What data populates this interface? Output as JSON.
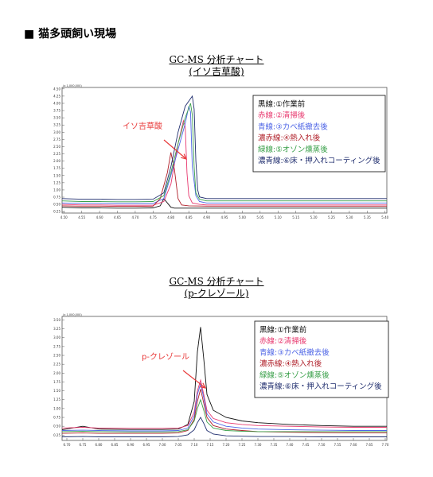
{
  "page": {
    "heading": "■ 猫多頭飼い現場"
  },
  "colors": {
    "black": "#111111",
    "red": "#e8396f",
    "blue": "#4d64e6",
    "dark_red": "#b0202a",
    "green": "#3aa04a",
    "dark_blue": "#1f2d6e",
    "arrow": "#e83a3a"
  },
  "chart_data": [
    {
      "type": "line",
      "title": "GC-MS 分析チャート",
      "subtitle": "(イソ吉草酸)",
      "corner_label": "(x 1,000,000)",
      "annotation": "イソ吉草酸",
      "x_ticks": [
        "4.50",
        "4.55",
        "4.60",
        "4.65",
        "4.70",
        "4.75",
        "4.80",
        "4.85",
        "4.90",
        "4.95",
        "5.00",
        "5.05",
        "5.10",
        "5.15",
        "5.20",
        "5.25",
        "5.30",
        "5.35",
        "5.40"
      ],
      "y_ticks": [
        "0.25",
        "0.50",
        "0.75",
        "1.00",
        "1.25",
        "1.50",
        "1.75",
        "2.00",
        "2.25",
        "2.50",
        "2.75",
        "3.00",
        "3.25",
        "3.50",
        "3.75",
        "4.00",
        "4.25",
        "4.50"
      ],
      "xlim": [
        4.495,
        5.405
      ],
      "ylim": [
        0.2,
        4.55
      ],
      "series": [
        {
          "name": "黒線:①作業前",
          "color": "#111111",
          "x": [
            4.495,
            4.55,
            4.6,
            4.65,
            4.7,
            4.75,
            4.77,
            4.78,
            4.79,
            4.8,
            4.81,
            4.83,
            4.85,
            4.9,
            4.95,
            5.0,
            5.05,
            5.1,
            5.2,
            5.3,
            5.405
          ],
          "y": [
            0.4,
            0.38,
            0.38,
            0.37,
            0.37,
            0.38,
            0.45,
            0.7,
            0.55,
            0.4,
            0.37,
            0.37,
            0.37,
            0.37,
            0.37,
            0.37,
            0.37,
            0.37,
            0.37,
            0.37,
            0.37
          ]
        },
        {
          "name": "赤線:②清掃後",
          "color": "#e8396f",
          "x": [
            4.495,
            4.55,
            4.6,
            4.65,
            4.7,
            4.75,
            4.78,
            4.8,
            4.82,
            4.835,
            4.84,
            4.845,
            4.85,
            4.86,
            4.88,
            4.9,
            4.95,
            5.0,
            5.1,
            5.2,
            5.3,
            5.405
          ],
          "y": [
            0.5,
            0.48,
            0.48,
            0.47,
            0.47,
            0.47,
            0.6,
            1.2,
            2.6,
            3.4,
            3.2,
            1.6,
            0.8,
            0.55,
            0.5,
            0.48,
            0.48,
            0.48,
            0.48,
            0.48,
            0.48,
            0.48
          ]
        },
        {
          "name": "青線:③カベ紙撤去後",
          "color": "#4d64e6",
          "x": [
            4.495,
            4.55,
            4.6,
            4.65,
            4.7,
            4.75,
            4.78,
            4.8,
            4.82,
            4.84,
            4.85,
            4.855,
            4.86,
            4.87,
            4.88,
            4.9,
            4.95,
            5.0,
            5.1,
            5.2,
            5.3,
            5.405
          ],
          "y": [
            0.55,
            0.54,
            0.54,
            0.53,
            0.53,
            0.53,
            0.7,
            1.5,
            2.4,
            3.3,
            3.9,
            3.7,
            1.8,
            0.8,
            0.6,
            0.55,
            0.55,
            0.55,
            0.55,
            0.55,
            0.55,
            0.55
          ]
        },
        {
          "name": "濃赤線:④熱入れ後",
          "color": "#b0202a",
          "x": [
            4.495,
            4.55,
            4.6,
            4.65,
            4.7,
            4.75,
            4.77,
            4.79,
            4.8,
            4.81,
            4.82,
            4.83,
            4.85,
            4.9,
            4.95,
            5.0,
            5.1,
            5.2,
            5.3,
            5.405
          ],
          "y": [
            0.45,
            0.44,
            0.44,
            0.43,
            0.43,
            0.44,
            0.7,
            1.6,
            2.3,
            1.7,
            0.7,
            0.48,
            0.45,
            0.44,
            0.44,
            0.44,
            0.44,
            0.44,
            0.44,
            0.44
          ]
        },
        {
          "name": "緑線:⑤オゾン燻蒸後",
          "color": "#3aa04a",
          "x": [
            4.495,
            4.55,
            4.6,
            4.65,
            4.7,
            4.75,
            4.78,
            4.8,
            4.82,
            4.84,
            4.855,
            4.86,
            4.865,
            4.87,
            4.88,
            4.9,
            4.95,
            5.0,
            5.1,
            5.2,
            5.3,
            5.405
          ],
          "y": [
            0.62,
            0.6,
            0.6,
            0.59,
            0.59,
            0.6,
            0.8,
            1.6,
            2.6,
            3.5,
            4.0,
            3.6,
            1.8,
            0.9,
            0.68,
            0.62,
            0.62,
            0.62,
            0.62,
            0.62,
            0.62,
            0.62
          ]
        },
        {
          "name": "濃青線:⑥床・押入れコーティング後",
          "color": "#1f2d6e",
          "x": [
            4.495,
            4.55,
            4.6,
            4.65,
            4.7,
            4.75,
            4.78,
            4.8,
            4.82,
            4.84,
            4.86,
            4.865,
            4.87,
            4.875,
            4.88,
            4.9,
            4.95,
            5.0,
            5.1,
            5.2,
            5.3,
            5.405
          ],
          "y": [
            0.7,
            0.68,
            0.68,
            0.67,
            0.67,
            0.68,
            0.9,
            1.8,
            3.0,
            3.9,
            4.25,
            3.8,
            2.0,
            1.0,
            0.76,
            0.7,
            0.7,
            0.7,
            0.7,
            0.7,
            0.7,
            0.7
          ]
        }
      ],
      "grid": false,
      "legend_position": "top-right"
    },
    {
      "type": "line",
      "title": "GC-MS 分析チャート",
      "subtitle": "(p-クレゾール)",
      "corner_label": "(x 1,000,000)",
      "annotation": "p-クレゾール",
      "x_ticks": [
        "6.70",
        "6.75",
        "6.80",
        "6.85",
        "6.90",
        "6.95",
        "7.00",
        "7.05",
        "7.10",
        "7.15",
        "7.20",
        "7.25",
        "7.30",
        "7.35",
        "7.40",
        "7.45",
        "7.50",
        "7.55",
        "7.60",
        "7.65",
        "7.70"
      ],
      "y_ticks": [
        "0.25",
        "0.50",
        "0.75",
        "1.00",
        "1.25",
        "1.50",
        "1.75",
        "2.00",
        "2.25",
        "2.50",
        "2.75",
        "3.00",
        "3.25",
        "3.50"
      ],
      "xlim": [
        6.685,
        7.705
      ],
      "ylim": [
        0.1,
        3.6
      ],
      "series": [
        {
          "name": "黒線:①作業前",
          "color": "#111111",
          "x": [
            6.685,
            6.75,
            6.8,
            6.9,
            7.0,
            7.05,
            7.08,
            7.1,
            7.11,
            7.12,
            7.13,
            7.14,
            7.16,
            7.2,
            7.25,
            7.3,
            7.4,
            7.5,
            7.6,
            7.705
          ],
          "y": [
            0.4,
            0.5,
            0.42,
            0.41,
            0.41,
            0.42,
            0.55,
            1.2,
            2.6,
            3.3,
            2.4,
            1.4,
            0.95,
            0.75,
            0.65,
            0.6,
            0.55,
            0.52,
            0.5,
            0.5
          ]
        },
        {
          "name": "赤線:②清掃後",
          "color": "#e8396f",
          "x": [
            6.685,
            6.75,
            6.8,
            6.9,
            7.0,
            7.05,
            7.08,
            7.1,
            7.11,
            7.12,
            7.13,
            7.14,
            7.16,
            7.2,
            7.25,
            7.3,
            7.4,
            7.5,
            7.6,
            7.705
          ],
          "y": [
            0.45,
            0.47,
            0.45,
            0.44,
            0.44,
            0.45,
            0.52,
            0.9,
            1.5,
            1.8,
            1.4,
            0.95,
            0.72,
            0.6,
            0.55,
            0.52,
            0.5,
            0.48,
            0.47,
            0.47
          ]
        },
        {
          "name": "青線:③カベ紙撤去後",
          "color": "#4d64e6",
          "x": [
            6.685,
            6.75,
            6.8,
            6.9,
            7.0,
            7.05,
            7.08,
            7.1,
            7.11,
            7.12,
            7.13,
            7.14,
            7.16,
            7.2,
            7.25,
            7.3,
            7.4,
            7.5,
            7.6,
            7.705
          ],
          "y": [
            0.38,
            0.39,
            0.38,
            0.37,
            0.37,
            0.38,
            0.45,
            0.8,
            1.4,
            1.7,
            1.3,
            0.85,
            0.62,
            0.5,
            0.45,
            0.42,
            0.4,
            0.39,
            0.38,
            0.38
          ]
        },
        {
          "name": "濃赤線:④熱入れ後",
          "color": "#b0202a",
          "x": [
            6.685,
            6.75,
            6.8,
            6.9,
            7.0,
            7.05,
            7.08,
            7.1,
            7.11,
            7.12,
            7.13,
            7.14,
            7.16,
            7.2,
            7.25,
            7.3,
            7.4,
            7.5,
            7.6,
            7.705
          ],
          "y": [
            0.3,
            0.31,
            0.3,
            0.3,
            0.3,
            0.31,
            0.38,
            0.7,
            1.2,
            1.55,
            1.15,
            0.75,
            0.52,
            0.42,
            0.38,
            0.35,
            0.33,
            0.32,
            0.31,
            0.31
          ]
        },
        {
          "name": "緑線:⑤オゾン燻蒸後",
          "color": "#3aa04a",
          "x": [
            6.685,
            6.75,
            6.8,
            6.9,
            7.0,
            7.05,
            7.08,
            7.1,
            7.11,
            7.12,
            7.13,
            7.14,
            7.16,
            7.2,
            7.25,
            7.3,
            7.4,
            7.5,
            7.6,
            7.705
          ],
          "y": [
            0.35,
            0.36,
            0.35,
            0.34,
            0.34,
            0.35,
            0.4,
            0.65,
            1.0,
            1.25,
            0.95,
            0.62,
            0.45,
            0.38,
            0.36,
            0.35,
            0.35,
            0.35,
            0.35,
            0.35
          ]
        },
        {
          "name": "濃青線:⑥床・押入れコーティング後",
          "color": "#1f2d6e",
          "x": [
            6.685,
            6.75,
            6.8,
            6.9,
            7.0,
            7.05,
            7.08,
            7.1,
            7.11,
            7.12,
            7.13,
            7.14,
            7.16,
            7.2,
            7.25,
            7.3,
            7.4,
            7.5,
            7.6,
            7.705
          ],
          "y": [
            0.2,
            0.21,
            0.2,
            0.2,
            0.2,
            0.21,
            0.26,
            0.4,
            0.6,
            0.75,
            0.58,
            0.38,
            0.28,
            0.23,
            0.22,
            0.21,
            0.21,
            0.2,
            0.2,
            0.2
          ]
        }
      ],
      "grid": false,
      "legend_position": "top-right"
    }
  ]
}
